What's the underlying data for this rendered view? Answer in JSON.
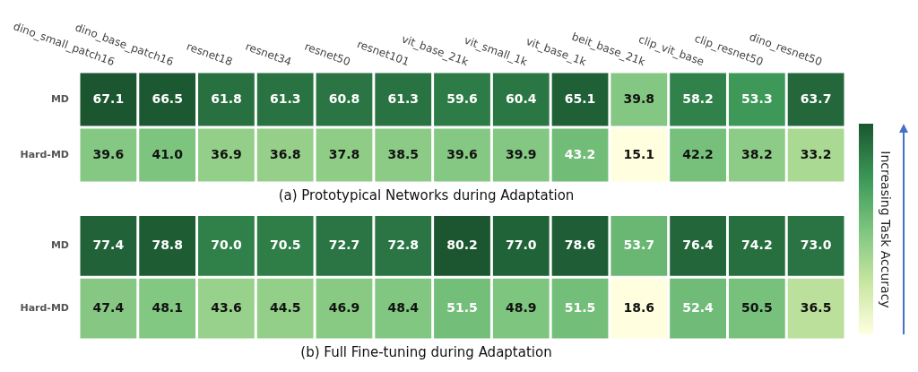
{
  "chart_data": [
    {
      "type": "heatmap",
      "title": "(a) Prototypical Networks during Adaptation",
      "clabel": "Increasing Task Accuracy",
      "categories": [
        "dino_small_patch16",
        "dino_base_patch16",
        "resnet18",
        "resnet34",
        "resnet50",
        "resnet101",
        "vit_base_21k",
        "vit_small_1k",
        "vit_base_1k",
        "beit_base_21k",
        "clip_vit_base",
        "clip_resnet50",
        "dino_resnet50"
      ],
      "y_categories": [
        "MD",
        "Hard-MD"
      ],
      "cells": [
        [
          67.1,
          66.5,
          61.8,
          61.3,
          60.8,
          61.3,
          59.6,
          60.4,
          65.1,
          39.8,
          58.2,
          53.3,
          63.7
        ],
        [
          39.6,
          41.0,
          36.9,
          36.8,
          37.8,
          38.5,
          39.6,
          39.9,
          43.2,
          15.1,
          42.2,
          38.2,
          33.2
        ]
      ],
      "cell_labels": [
        [
          "67.1",
          "66.5",
          "61.8",
          "61.3",
          "60.8",
          "61.3",
          "59.6",
          "60.4",
          "65.1",
          "39.8",
          "58.2",
          "53.3",
          "63.7"
        ],
        [
          "39.6",
          "41.0",
          "36.9",
          "36.8",
          "37.8",
          "38.5",
          "39.6",
          "39.9",
          "43.2",
          "15.1",
          "42.2",
          "38.2",
          "33.2"
        ]
      ]
    },
    {
      "type": "heatmap",
      "title": "(b) Full Fine-tuning during Adaptation",
      "categories": [
        null,
        null,
        null,
        null,
        null,
        null,
        null,
        null,
        null,
        null,
        null,
        null,
        null
      ],
      "y_categories": [
        "MD",
        "Hard-MD"
      ],
      "cells": [
        [
          77.4,
          78.8,
          70.0,
          70.5,
          72.7,
          72.8,
          80.2,
          77.0,
          78.6,
          53.7,
          76.4,
          74.2,
          73.0
        ],
        [
          47.4,
          48.1,
          43.6,
          44.5,
          46.9,
          48.4,
          51.5,
          48.9,
          51.5,
          18.6,
          52.4,
          50.5,
          36.5
        ]
      ],
      "cell_labels": [
        [
          "77.4",
          "78.8",
          "70.0",
          "70.5",
          "72.7",
          "72.8",
          "80.2",
          "77.0",
          "78.6",
          "53.7",
          "76.4",
          "74.2",
          "73.0"
        ],
        [
          "47.4",
          "48.1",
          "43.6",
          "44.5",
          "46.9",
          "48.4",
          "51.5",
          "48.9",
          "51.5",
          "18.6",
          "52.4",
          "50.5",
          "36.5"
        ]
      ]
    }
  ]
}
